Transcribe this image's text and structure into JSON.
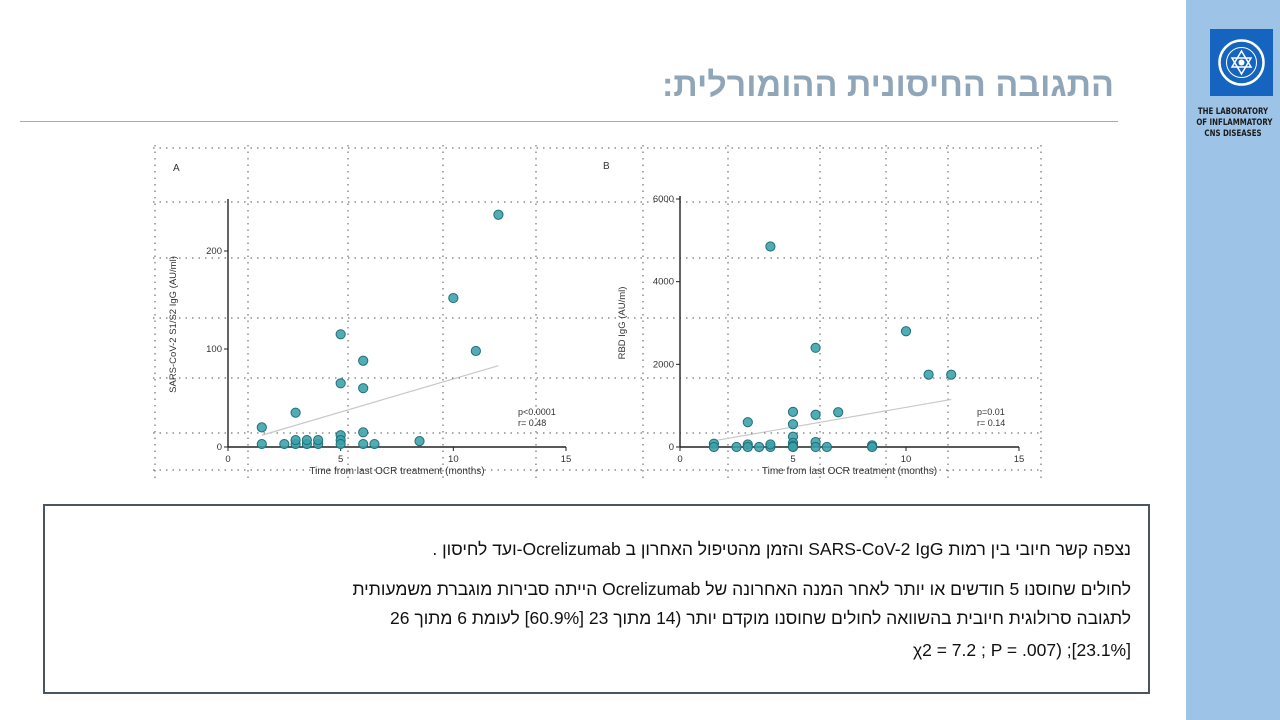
{
  "slide": {
    "title": "התגובה החיסונית ההומורלית:"
  },
  "sidebar": {
    "lab_lines": [
      "THE LABORATORY",
      "OF INFLAMMATORY",
      "CNS DISEASES"
    ],
    "colors": {
      "sidebar": "#9dc3e6",
      "logo": "#1565c0"
    },
    "logo_icon": "university-emblem-icon"
  },
  "summary": {
    "line1": "נצפה קשר חיובי בין רמות SARS-CoV-2 IgG והזמן מהטיפול האחרון ב Ocrelizumab-ועד לחיסון .",
    "line2": "לחולים שחוסנו 5 חודשים או יותר לאחר המנה האחרונה של Ocrelizumab הייתה סבירות מוגברת משמעותית",
    "line3": "לתגובה סרולוגית חיובית בהשוואה לחולים שחוסנו מוקדם יותר (14 מתוך 23 [60.9%] לעומת 6 מתוך 26",
    "line4": "[23.1%]; (χ2 = 7.2 ; P = .007"
  },
  "chart_data": [
    {
      "type": "scatter",
      "panel": "A",
      "xlabel": "Time from last OCR treatment (months)",
      "ylabel": "SARS-CoV-2 S1/S2 IgG (AU/ml)",
      "xlim": [
        0,
        15
      ],
      "ylim": [
        0,
        250
      ],
      "xticks": [
        0,
        5,
        10,
        15
      ],
      "yticks": [
        0,
        100,
        200
      ],
      "stats": [
        "p<0.0001",
        "r= 0.48"
      ],
      "trend": [
        [
          1.5,
          12
        ],
        [
          12,
          83
        ]
      ],
      "marker_color": "#3aa0a8",
      "grid": "dotted",
      "points": [
        [
          1.5,
          20
        ],
        [
          1.5,
          3
        ],
        [
          2.5,
          3
        ],
        [
          3,
          35
        ],
        [
          3,
          3
        ],
        [
          3,
          7
        ],
        [
          3.5,
          3
        ],
        [
          3.5,
          7
        ],
        [
          4,
          3
        ],
        [
          4,
          7
        ],
        [
          5,
          115
        ],
        [
          5,
          65
        ],
        [
          5,
          12
        ],
        [
          5,
          7
        ],
        [
          5,
          3
        ],
        [
          6,
          88
        ],
        [
          6,
          60
        ],
        [
          6,
          15
        ],
        [
          6,
          3
        ],
        [
          6.5,
          3
        ],
        [
          8.5,
          6
        ],
        [
          10,
          152
        ],
        [
          11,
          98
        ],
        [
          12,
          237
        ]
      ]
    },
    {
      "type": "scatter",
      "panel": "B",
      "xlabel": "Time from last OCR treatment (months)",
      "ylabel": "RBD IgG (AU/ml)",
      "xlim": [
        0,
        15
      ],
      "ylim": [
        0,
        6000
      ],
      "xticks": [
        0,
        5,
        10,
        15
      ],
      "yticks": [
        0,
        2000,
        4000,
        6000
      ],
      "stats": [
        "p=0.01",
        "r= 0.14"
      ],
      "trend": [
        [
          1.5,
          150
        ],
        [
          12,
          1150
        ]
      ],
      "marker_color": "#3aa0a8",
      "grid": "dotted",
      "points": [
        [
          1.5,
          80
        ],
        [
          1.5,
          0
        ],
        [
          2.5,
          0
        ],
        [
          3,
          600
        ],
        [
          3,
          60
        ],
        [
          3,
          0
        ],
        [
          3.5,
          0
        ],
        [
          4,
          0
        ],
        [
          4,
          60
        ],
        [
          5,
          850
        ],
        [
          5,
          550
        ],
        [
          5,
          250
        ],
        [
          5,
          100
        ],
        [
          5,
          30
        ],
        [
          5,
          0
        ],
        [
          6,
          2400
        ],
        [
          6,
          780
        ],
        [
          6,
          120
        ],
        [
          6,
          0
        ],
        [
          6.5,
          0
        ],
        [
          7,
          840
        ],
        [
          8.5,
          40
        ],
        [
          8.5,
          0
        ],
        [
          10,
          2800
        ],
        [
          11,
          1750
        ],
        [
          12,
          1750
        ],
        [
          4,
          4850
        ]
      ]
    }
  ]
}
